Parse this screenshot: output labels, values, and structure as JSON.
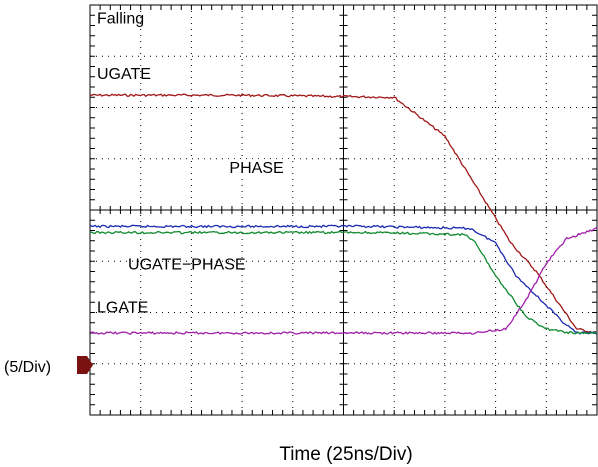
{
  "chart_data": {
    "type": "line",
    "xlabel": "Time (25ns/Div)",
    "ylabel": "(5/Div)",
    "x_unit": "div",
    "y_unit": "div",
    "xlim": [
      0,
      10
    ],
    "ylim": [
      -2,
      8
    ],
    "grid": true,
    "annotations": [
      "Falling",
      "UGATE",
      "PHASE",
      "UGATE−PHASE",
      "LGATE"
    ],
    "series": [
      {
        "name": "UGATE",
        "color": "#a01818",
        "x": [
          0,
          3.0,
          6.0,
          7.0,
          7.4,
          7.9,
          8.3,
          8.8,
          9.2,
          9.6,
          10
        ],
        "y": [
          5.8,
          5.8,
          5.75,
          4.8,
          4.0,
          3.0,
          2.2,
          1.5,
          0.8,
          0.1,
          0.0
        ]
      },
      {
        "name": "PHASE",
        "color": "#1c2bb0",
        "x": [
          0,
          5.5,
          7.5,
          8.0,
          8.4,
          8.9,
          9.3,
          9.6,
          10
        ],
        "y": [
          2.6,
          2.6,
          2.55,
          2.2,
          1.4,
          0.8,
          0.3,
          0.0,
          0.0
        ]
      },
      {
        "name": "UGATE−PHASE",
        "color": "#108a30",
        "x": [
          0,
          5.5,
          7.4,
          7.6,
          8.0,
          8.6,
          9.0,
          9.5,
          10
        ],
        "y": [
          2.45,
          2.45,
          2.4,
          2.2,
          1.4,
          0.4,
          0.1,
          0.0,
          0.0
        ]
      },
      {
        "name": "LGATE",
        "color": "#a020a8",
        "x": [
          0,
          4.0,
          7.6,
          8.2,
          8.6,
          9.0,
          9.4,
          10
        ],
        "y": [
          0.0,
          0.0,
          0.0,
          0.1,
          0.8,
          1.7,
          2.3,
          2.55
        ]
      }
    ]
  }
}
